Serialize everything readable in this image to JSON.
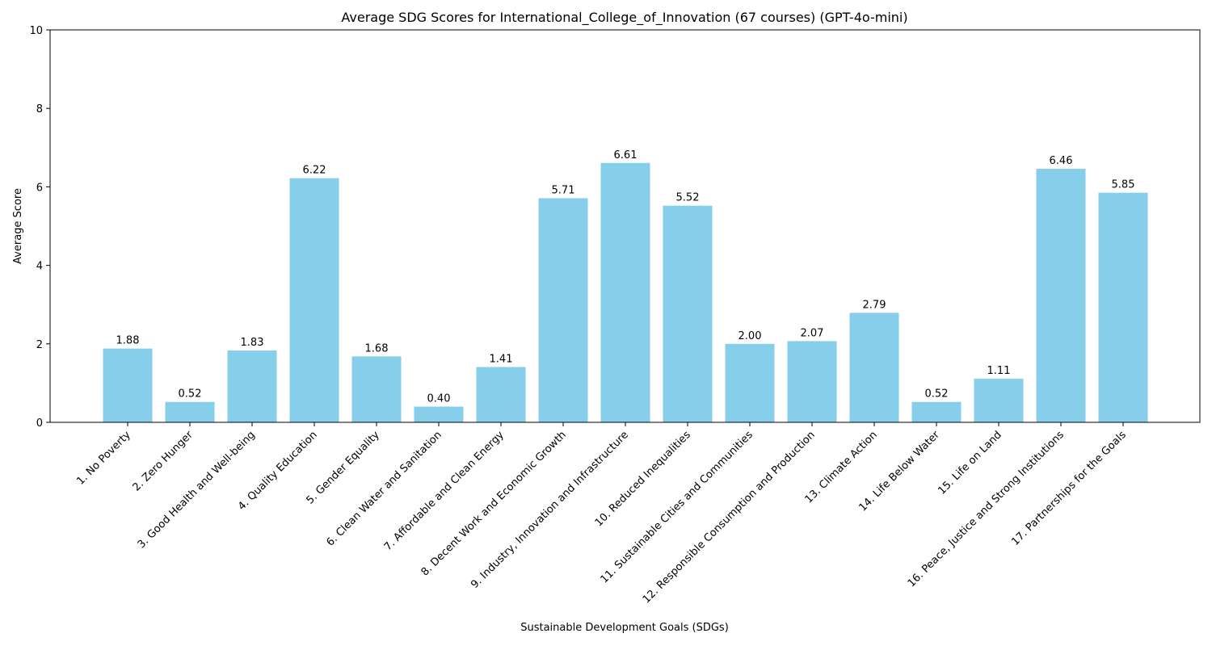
{
  "chart_data": {
    "type": "bar",
    "title": "Average SDG Scores for International_College_of_Innovation (67 courses) (GPT-4o-mini)",
    "xlabel": "Sustainable Development Goals (SDGs)",
    "ylabel": "Average Score",
    "ylim": [
      0,
      10
    ],
    "yticks": [
      0,
      2,
      4,
      6,
      8,
      10
    ],
    "grid": false,
    "bar_color": "#87CEEB",
    "categories": [
      "1. No Poverty",
      "2. Zero Hunger",
      "3. Good Health and Well-being",
      "4. Quality Education",
      "5. Gender Equality",
      "6. Clean Water and Sanitation",
      "7. Affordable and Clean Energy",
      "8. Decent Work and Economic Growth",
      "9. Industry, Innovation and Infrastructure",
      "10. Reduced Inequalities",
      "11. Sustainable Cities and Communities",
      "12. Responsible Consumption and Production",
      "13. Climate Action",
      "14. Life Below Water",
      "15. Life on Land",
      "16. Peace, Justice and Strong Institutions",
      "17. Partnerships for the Goals"
    ],
    "values": [
      1.88,
      0.52,
      1.83,
      6.22,
      1.68,
      0.4,
      1.41,
      5.71,
      6.61,
      5.52,
      2.0,
      2.07,
      2.79,
      0.52,
      1.11,
      6.46,
      5.85
    ],
    "value_labels": [
      "1.88",
      "0.52",
      "1.83",
      "6.22",
      "1.68",
      "0.40",
      "1.41",
      "5.71",
      "6.61",
      "5.52",
      "2.00",
      "2.07",
      "2.79",
      "0.52",
      "1.11",
      "6.46",
      "5.85"
    ]
  }
}
